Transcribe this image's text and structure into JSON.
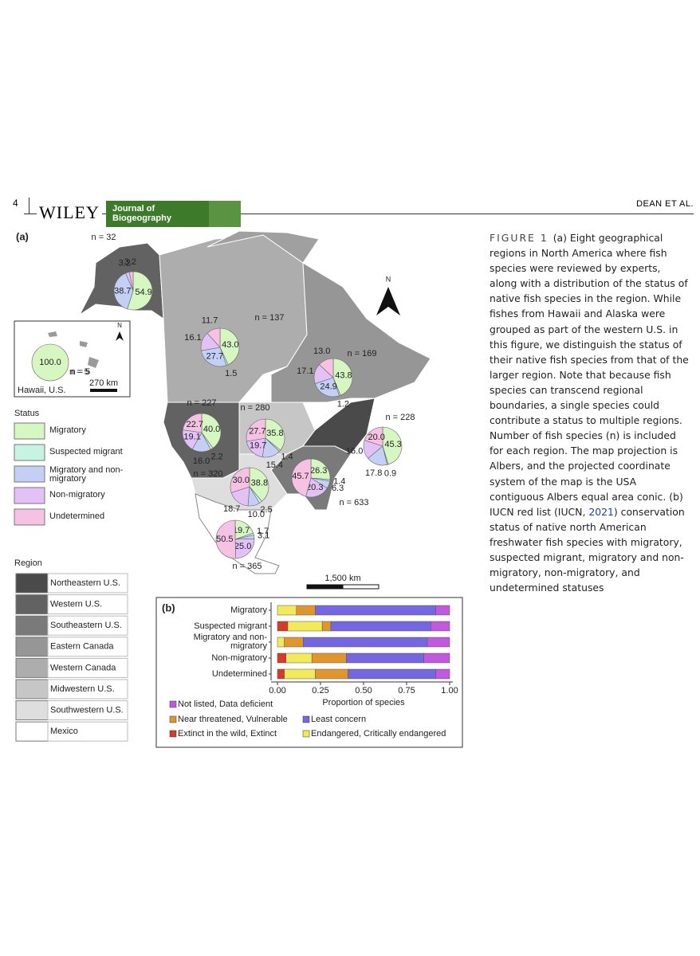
{
  "header": {
    "page_number": "4",
    "publisher": "WILEY",
    "journal": "Journal of Biogeography",
    "running_head": "DEAN ET AL."
  },
  "figure": {
    "panel_a": {
      "label": "(a)",
      "north": "N",
      "scale_bar": "1,500 km",
      "inset": {
        "name": "Hawaii, U.S.",
        "n": "n = 5",
        "north": "N",
        "scale_bar": "270 km",
        "values": [
          100.0,
          null,
          null,
          null,
          null
        ],
        "value_labels": [
          "100.0",
          null,
          null,
          null,
          null
        ]
      },
      "status_legend": {
        "title": "Status",
        "items": [
          {
            "name": "Migratory",
            "color": "#d6f6c2"
          },
          {
            "name": "Suspected migrant",
            "color": "#c6f3e2"
          },
          {
            "name": "Migratory and non-migratory",
            "color": "#c4cff6"
          },
          {
            "name": "Non-migratory",
            "color": "#e2c2f6"
          },
          {
            "name": "Undetermined",
            "color": "#f6c2e4"
          }
        ]
      },
      "region_legend": {
        "title": "Region",
        "items": [
          {
            "name": "Northeastern U.S.",
            "color": "#4a4a4a"
          },
          {
            "name": "Western U.S.",
            "color": "#626262"
          },
          {
            "name": "Southeastern U.S.",
            "color": "#7a7a7a"
          },
          {
            "name": "Eastern Canada",
            "color": "#969696"
          },
          {
            "name": "Western Canada",
            "color": "#adadad"
          },
          {
            "name": "Midwestern U.S.",
            "color": "#c6c6c6"
          },
          {
            "name": "Southwestern U.S.",
            "color": "#dedede"
          },
          {
            "name": "Mexico",
            "color": "#ffffff"
          }
        ]
      },
      "pies": [
        {
          "n": "n = 32",
          "values": [
            54.9,
            null,
            38.7,
            3.2,
            3.2
          ],
          "value_labels": [
            "54.9",
            null,
            "38.7",
            "3.2",
            "3.2"
          ]
        },
        {
          "n": "n = 137",
          "values": [
            43.0,
            1.5,
            27.7,
            16.1,
            11.7
          ],
          "value_labels": [
            "43.0",
            "1.5",
            "27.7",
            "16.1",
            "11.7"
          ]
        },
        {
          "n": "n = 169",
          "values": [
            43.8,
            1.2,
            24.9,
            17.1,
            13.0
          ],
          "value_labels": [
            "43.8",
            "1.2",
            "24.9",
            "17.1",
            "13.0"
          ]
        },
        {
          "n": "n = 227",
          "values": [
            40.0,
            2.2,
            16.0,
            19.1,
            22.7
          ],
          "value_labels": [
            "40.0",
            "2.2",
            "16.0",
            "19.1",
            "22.7"
          ]
        },
        {
          "n": "n = 280",
          "values": [
            35.8,
            1.4,
            15.4,
            19.7,
            27.7
          ],
          "value_labels": [
            "35.8",
            "1.4",
            "15.4",
            "19.7",
            "27.7"
          ]
        },
        {
          "n": "n = 228",
          "values": [
            45.3,
            0.9,
            17.8,
            16.0,
            20.0
          ],
          "value_labels": [
            "45.3",
            "0.9",
            "17.8",
            "16.0",
            "20.0"
          ]
        },
        {
          "n": "n = 633",
          "values": [
            26.3,
            1.4,
            6.3,
            20.3,
            45.7
          ],
          "value_labels": [
            "26.3",
            "1.4",
            "6.3",
            "20.3",
            "45.7"
          ]
        },
        {
          "n": "n = 320",
          "values": [
            38.8,
            2.5,
            10.0,
            18.7,
            30.0
          ],
          "value_labels": [
            "38.8",
            "2.5",
            "10.0",
            "18.7",
            "30.0"
          ]
        },
        {
          "n": "n = 365",
          "values": [
            19.7,
            1.7,
            3.1,
            25.0,
            50.5
          ],
          "value_labels": [
            "19.7",
            "1.7",
            "3.1",
            "25.0",
            "50.5"
          ]
        }
      ]
    },
    "panel_b": {
      "type": "bar",
      "label": "(b)",
      "orientation": "horizontal",
      "stacked": true,
      "categories": [
        "Migratory",
        "Suspected migrant",
        "Migratory and non-migratory",
        "Non-migratory",
        "Undetermined"
      ],
      "series": [
        {
          "name": "Extinct in the wild, Extinct",
          "color": "#d63a2a",
          "values": [
            0,
            0.06,
            0,
            0.05,
            0.04
          ]
        },
        {
          "name": "Endangered, Critically endangered",
          "color": "#f2ea5a",
          "values": [
            0.11,
            0.2,
            0.04,
            0.15,
            0.18
          ]
        },
        {
          "name": "Near threatened, Vulnerable",
          "color": "#e0962e",
          "values": [
            0.11,
            0.05,
            0.11,
            0.2,
            0.19
          ]
        },
        {
          "name": "Least concern",
          "color": "#7467e0",
          "values": [
            0.7,
            0.58,
            0.72,
            0.45,
            0.51
          ]
        },
        {
          "name": "Not listed, Data deficient",
          "color": "#c058e0",
          "values": [
            0.08,
            0.11,
            0.13,
            0.15,
            0.08
          ]
        }
      ],
      "xlabel": "Proportion of species",
      "xlim": [
        0,
        1
      ],
      "xticks": [
        {
          "value": 0,
          "label": "0.00"
        },
        {
          "value": 0.25,
          "label": "0.25"
        },
        {
          "value": 0.5,
          "label": "0.50"
        },
        {
          "value": 0.75,
          "label": "0.75"
        },
        {
          "value": 1,
          "label": "1.00"
        }
      ]
    }
  },
  "caption": {
    "label": "FIGURE 1",
    "text": "(a) Eight geographical regions in North America where fish species were reviewed by experts, along with a distribution of the status of native fish species in the region. While fishes from Hawaii and Alaska were grouped as part of the western U.S. in this figure, we distinguish the status of their native fish species from that of the larger region. Note that because fish species can transcend regional boundaries, a single species could contribute a status to multiple regions. Number of fish species (n) is included for each region. The map projection is Albers, and the projected coordinate system of the map is the USA contiguous Albers equal area conic. (b) IUCN red list (IUCN, ",
    "link": "2021",
    "text_after": ") conservation status of native north American freshwater fish species with migratory, suspected migrant, migratory and non-migratory, non-migratory, and undetermined statuses"
  }
}
